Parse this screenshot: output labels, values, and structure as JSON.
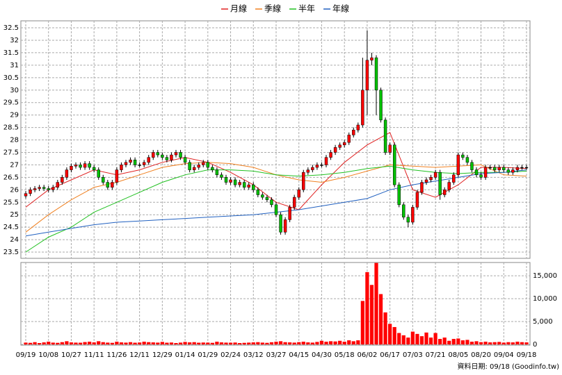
{
  "chart_data": {
    "type": "candlestick",
    "categories": [
      "09/19",
      null,
      null,
      null,
      null,
      "10/08",
      null,
      null,
      null,
      null,
      "10/27",
      null,
      null,
      null,
      null,
      "11/11",
      null,
      null,
      null,
      null,
      "11/26",
      null,
      null,
      null,
      null,
      "12/11",
      null,
      null,
      null,
      null,
      "12/29",
      null,
      null,
      null,
      null,
      "01/14",
      null,
      null,
      null,
      null,
      "01/29",
      null,
      null,
      null,
      null,
      "02/24",
      null,
      null,
      null,
      null,
      "03/12",
      null,
      null,
      null,
      null,
      "03/27",
      null,
      null,
      null,
      null,
      "04/15",
      null,
      null,
      null,
      null,
      "04/30",
      null,
      null,
      null,
      null,
      "05/18",
      null,
      null,
      null,
      null,
      "06/02",
      null,
      null,
      null,
      null,
      "06/17",
      null,
      null,
      null,
      null,
      "07/03",
      null,
      null,
      null,
      null,
      "07/21",
      null,
      null,
      null,
      null,
      "08/05",
      null,
      null,
      null,
      null,
      "08/20",
      null,
      null,
      null,
      null,
      "09/04",
      null,
      null,
      null,
      null,
      "09/18"
    ],
    "open": [
      25.75,
      25.85,
      26.0,
      26.05,
      26.1,
      26.05,
      26.0,
      26.1,
      26.3,
      26.5,
      26.8,
      26.95,
      27.0,
      26.9,
      27.05,
      26.9,
      26.8,
      26.5,
      26.3,
      26.1,
      26.3,
      26.8,
      27.0,
      27.1,
      27.2,
      27.0,
      27.0,
      27.1,
      27.3,
      27.5,
      27.4,
      27.3,
      27.2,
      27.4,
      27.5,
      27.3,
      27.1,
      26.8,
      26.9,
      27.0,
      27.1,
      26.9,
      26.8,
      26.6,
      26.5,
      26.3,
      26.4,
      26.2,
      26.3,
      26.1,
      26.2,
      26.0,
      25.8,
      25.7,
      25.6,
      25.4,
      25.0,
      24.3,
      24.8,
      25.3,
      25.7,
      26.0,
      26.7,
      26.8,
      26.9,
      27.0,
      27.0,
      27.3,
      27.5,
      27.7,
      27.8,
      27.9,
      28.2,
      28.4,
      28.6,
      30.0,
      31.2,
      31.3,
      30.0,
      28.8,
      27.5,
      27.8,
      26.2,
      25.4,
      24.9,
      24.7,
      25.3,
      25.9,
      26.3,
      26.4,
      26.5,
      26.7,
      25.8,
      26.0,
      26.3,
      26.6,
      27.4,
      27.3,
      27.1,
      26.8,
      26.6,
      26.5,
      26.9,
      26.9,
      26.8,
      26.9,
      26.8,
      26.7,
      26.8,
      26.9,
      26.9
    ],
    "high": [
      25.95,
      26.1,
      26.15,
      26.2,
      26.2,
      26.15,
      26.2,
      26.4,
      26.6,
      26.9,
      27.05,
      27.1,
      27.1,
      27.15,
      27.15,
      27.0,
      26.9,
      26.6,
      26.4,
      26.4,
      26.9,
      27.1,
      27.2,
      27.3,
      27.3,
      27.1,
      27.2,
      27.4,
      27.6,
      27.6,
      27.5,
      27.4,
      27.5,
      27.6,
      27.6,
      27.4,
      27.2,
      27.0,
      27.1,
      27.2,
      27.2,
      27.0,
      26.9,
      26.7,
      26.6,
      26.5,
      26.5,
      26.4,
      26.4,
      26.3,
      26.3,
      26.1,
      25.9,
      25.8,
      25.7,
      25.5,
      25.1,
      24.9,
      25.4,
      25.8,
      26.1,
      26.8,
      26.9,
      27.0,
      27.1,
      27.1,
      27.4,
      27.6,
      27.8,
      27.9,
      28.0,
      28.3,
      28.5,
      28.7,
      31.3,
      32.4,
      31.5,
      31.4,
      30.1,
      28.9,
      27.9,
      27.9,
      26.3,
      25.5,
      25.0,
      25.4,
      26.0,
      26.4,
      26.5,
      26.6,
      26.8,
      26.8,
      26.1,
      26.4,
      26.7,
      27.5,
      27.5,
      27.4,
      27.2,
      26.9,
      26.7,
      27.0,
      27.0,
      27.0,
      27.0,
      27.0,
      26.9,
      26.9,
      27.0,
      27.0,
      27.0
    ],
    "low": [
      25.65,
      25.75,
      25.9,
      25.95,
      25.95,
      25.9,
      25.9,
      26.0,
      26.2,
      26.4,
      26.7,
      26.85,
      26.8,
      26.8,
      26.8,
      26.7,
      26.4,
      26.2,
      26.0,
      26.0,
      26.2,
      26.7,
      26.9,
      27.0,
      26.9,
      26.9,
      26.9,
      27.0,
      27.2,
      27.3,
      27.2,
      27.1,
      27.1,
      27.3,
      27.2,
      27.0,
      26.7,
      26.7,
      26.8,
      26.9,
      26.8,
      26.7,
      26.5,
      26.4,
      26.2,
      26.2,
      26.1,
      26.1,
      26.0,
      26.0,
      25.9,
      25.7,
      25.6,
      25.5,
      25.3,
      24.9,
      24.2,
      24.2,
      24.7,
      25.2,
      25.6,
      25.9,
      26.6,
      26.7,
      26.8,
      26.9,
      26.9,
      27.2,
      27.4,
      27.6,
      27.7,
      27.8,
      28.1,
      28.3,
      28.5,
      29.0,
      31.0,
      29.0,
      28.7,
      27.4,
      27.4,
      26.1,
      25.3,
      24.8,
      24.5,
      24.6,
      25.2,
      25.8,
      26.2,
      26.3,
      26.4,
      25.6,
      25.7,
      25.9,
      26.2,
      26.5,
      27.2,
      27.0,
      26.7,
      26.5,
      26.4,
      26.4,
      26.8,
      26.7,
      26.7,
      26.7,
      26.6,
      26.6,
      26.7,
      26.8,
      26.8
    ],
    "close": [
      25.85,
      26.0,
      26.05,
      26.1,
      26.05,
      26.0,
      26.1,
      26.3,
      26.5,
      26.8,
      26.95,
      27.0,
      26.9,
      27.05,
      26.9,
      26.8,
      26.5,
      26.3,
      26.1,
      26.3,
      26.8,
      27.0,
      27.1,
      27.2,
      27.0,
      27.0,
      27.1,
      27.3,
      27.5,
      27.4,
      27.3,
      27.2,
      27.4,
      27.5,
      27.3,
      27.1,
      26.8,
      26.9,
      27.0,
      27.1,
      26.9,
      26.8,
      26.6,
      26.5,
      26.3,
      26.4,
      26.2,
      26.3,
      26.1,
      26.2,
      26.0,
      25.8,
      25.7,
      25.6,
      25.4,
      25.0,
      24.3,
      24.8,
      25.3,
      25.7,
      26.0,
      26.7,
      26.8,
      26.9,
      27.0,
      27.0,
      27.3,
      27.5,
      27.7,
      27.8,
      27.9,
      28.2,
      28.4,
      28.6,
      30.0,
      31.2,
      31.3,
      30.0,
      28.8,
      27.5,
      27.8,
      26.2,
      25.4,
      24.9,
      24.7,
      25.3,
      25.9,
      26.3,
      26.4,
      26.5,
      26.7,
      25.8,
      26.0,
      26.3,
      26.6,
      27.4,
      27.3,
      27.1,
      26.8,
      26.6,
      26.5,
      26.9,
      26.9,
      26.8,
      26.9,
      26.8,
      26.7,
      26.8,
      26.9,
      26.9,
      26.9
    ],
    "up_color": "#ff0000",
    "down_color": "#00c000",
    "ylim": [
      23.25,
      32.78
    ],
    "yticks": [
      23.5,
      24,
      24.5,
      25,
      25.5,
      26,
      26.5,
      27,
      27.5,
      28,
      28.5,
      29,
      29.5,
      30,
      30.5,
      31,
      31.5,
      32,
      32.5
    ],
    "grid": true,
    "legend": "top",
    "series": [
      {
        "name": "月線",
        "color": "#e02020",
        "x": [
          "09/19",
          "10/08",
          "10/27",
          "11/11",
          "11/26",
          "12/11",
          "12/29",
          "01/14",
          "01/29",
          "02/24",
          "03/12",
          "03/27",
          "04/15",
          "04/30",
          "05/18",
          "06/02",
          "06/17",
          "07/03",
          "07/21",
          "08/05",
          "08/20",
          "09/04",
          "09/18"
        ],
        "values": [
          25.3,
          26.0,
          26.4,
          26.8,
          26.6,
          26.8,
          27.1,
          27.3,
          27.1,
          26.7,
          26.2,
          25.5,
          25.2,
          26.2,
          27.1,
          27.8,
          28.3,
          26.0,
          25.7,
          26.2,
          26.9,
          26.9,
          26.85
        ]
      },
      {
        "name": "季線",
        "color": "#f08020",
        "x": [
          "09/19",
          "10/08",
          "10/27",
          "11/11",
          "11/26",
          "12/11",
          "12/29",
          "01/14",
          "01/29",
          "02/24",
          "03/12",
          "03/27",
          "04/15",
          "04/30",
          "05/18",
          "06/02",
          "06/17",
          "07/03",
          "07/21",
          "08/05",
          "08/20",
          "09/04",
          "09/18"
        ],
        "values": [
          24.3,
          25.0,
          25.6,
          26.1,
          26.3,
          26.6,
          26.9,
          27.05,
          27.1,
          27.05,
          26.9,
          26.6,
          26.4,
          26.3,
          26.5,
          26.75,
          27.0,
          26.95,
          26.9,
          26.95,
          27.0,
          26.6,
          26.55
        ]
      },
      {
        "name": "半年",
        "color": "#20c020",
        "x": [
          "09/19",
          "10/08",
          "10/27",
          "11/11",
          "11/26",
          "12/11",
          "12/29",
          "01/14",
          "01/29",
          "02/24",
          "03/12",
          "03/27",
          "04/15",
          "04/30",
          "05/18",
          "06/02",
          "06/17",
          "07/03",
          "07/21",
          "08/05",
          "08/20",
          "09/04",
          "09/18"
        ],
        "values": [
          23.5,
          24.1,
          24.5,
          25.1,
          25.5,
          25.9,
          26.3,
          26.6,
          26.8,
          26.8,
          26.75,
          26.6,
          26.55,
          26.6,
          26.7,
          26.85,
          26.95,
          26.8,
          26.7,
          26.65,
          26.7,
          26.7,
          26.75
        ]
      },
      {
        "name": "年線",
        "color": "#2060c0",
        "x": [
          "09/19",
          "10/08",
          "10/27",
          "11/11",
          "11/26",
          "12/11",
          "12/29",
          "01/14",
          "01/29",
          "02/24",
          "03/12",
          "03/27",
          "04/15",
          "04/30",
          "05/18",
          "06/02",
          "06/17",
          "07/03",
          "07/21",
          "08/05",
          "08/20",
          "09/04",
          "09/18"
        ],
        "values": [
          24.15,
          24.3,
          24.45,
          24.6,
          24.7,
          24.75,
          24.8,
          24.85,
          24.9,
          24.95,
          25.0,
          25.1,
          25.2,
          25.35,
          25.5,
          25.65,
          26.0,
          26.2,
          26.35,
          26.5,
          26.65,
          26.7,
          26.8
        ]
      }
    ],
    "volume": {
      "color": "#ff0000",
      "values": [
        400,
        350,
        500,
        300,
        450,
        600,
        400,
        350,
        500,
        700,
        450,
        400,
        380,
        520,
        600,
        450,
        700,
        500,
        400,
        350,
        600,
        450,
        400,
        500,
        380,
        420,
        600,
        500,
        450,
        400,
        550,
        380,
        420,
        300,
        400,
        550,
        450,
        500,
        380,
        420,
        400,
        350,
        600,
        450,
        400,
        380,
        420,
        300,
        350,
        400,
        450,
        500,
        400,
        350,
        480,
        600,
        700,
        500,
        450,
        400,
        500,
        600,
        450,
        400,
        550,
        800,
        600,
        700,
        650,
        800,
        600,
        900,
        700,
        900,
        9500,
        15800,
        13000,
        17800,
        11000,
        7000,
        4500,
        3800,
        2500,
        2000,
        1500,
        2800,
        2300,
        1800,
        2600,
        1500,
        2500,
        1200,
        1500,
        800,
        1200,
        1300,
        900,
        1000,
        600,
        700,
        500,
        600,
        450,
        500,
        550,
        400,
        500,
        450,
        600,
        500,
        450
      ],
      "ylim": [
        0,
        17900
      ],
      "yticks": [
        0,
        {
          "value": 5000,
          "label": "5,000"
        },
        {
          "value": 10000,
          "label": "10,000"
        },
        {
          "value": 15000,
          "label": "15,000"
        }
      ]
    },
    "footnote": "資料日期: 09/18  (Goodinfo.tw)"
  }
}
